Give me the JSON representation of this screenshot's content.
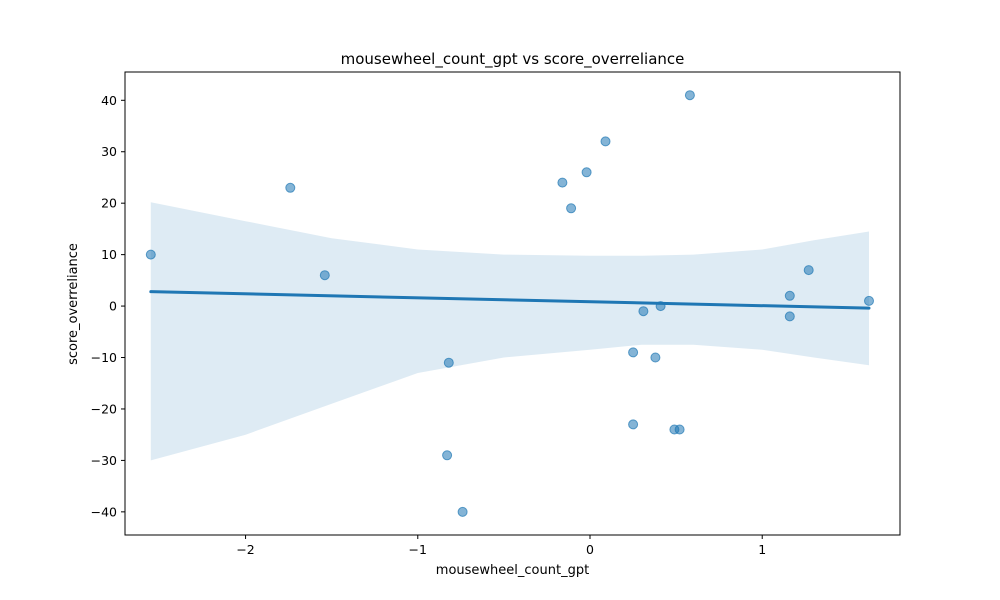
{
  "chart_data": {
    "type": "scatter",
    "title": "mousewheel_count_gpt vs score_overreliance",
    "xlabel": "mousewheel_count_gpt",
    "ylabel": "score_overreliance",
    "xlim": [
      -2.7,
      1.8
    ],
    "ylim": [
      -44.5,
      45.5
    ],
    "xticks": [
      -2,
      -1,
      0,
      1
    ],
    "xtick_labels": [
      "−2",
      "−1",
      "0",
      "1"
    ],
    "yticks": [
      40,
      30,
      20,
      10,
      0,
      -10,
      -20,
      -30,
      -40
    ],
    "ytick_labels": [
      "40",
      "30",
      "20",
      "10",
      "0",
      "−10",
      "−20",
      "−30",
      "−40"
    ],
    "grid": false,
    "point_color": "#1f77b4",
    "line_color": "#1f77b4",
    "band_color": "#1f77b4",
    "points": [
      {
        "x": -2.55,
        "y": 10
      },
      {
        "x": -1.74,
        "y": 23
      },
      {
        "x": -1.54,
        "y": 6
      },
      {
        "x": -0.82,
        "y": -11
      },
      {
        "x": -0.83,
        "y": -29
      },
      {
        "x": -0.74,
        "y": -40
      },
      {
        "x": -0.16,
        "y": 24
      },
      {
        "x": -0.11,
        "y": 19
      },
      {
        "x": -0.02,
        "y": 26
      },
      {
        "x": 0.09,
        "y": 32
      },
      {
        "x": 0.25,
        "y": -9
      },
      {
        "x": 0.25,
        "y": -23
      },
      {
        "x": 0.31,
        "y": -1
      },
      {
        "x": 0.38,
        "y": -10
      },
      {
        "x": 0.41,
        "y": 0
      },
      {
        "x": 0.49,
        "y": -24
      },
      {
        "x": 0.52,
        "y": -24
      },
      {
        "x": 0.58,
        "y": 41
      },
      {
        "x": 1.16,
        "y": 2
      },
      {
        "x": 1.16,
        "y": -2
      },
      {
        "x": 1.27,
        "y": 7
      },
      {
        "x": 1.62,
        "y": 1
      }
    ],
    "regression_line": {
      "x": [
        -2.55,
        1.62
      ],
      "y": [
        2.8,
        -0.4
      ]
    },
    "confidence_band": {
      "x": [
        -2.55,
        -2.0,
        -1.5,
        -1.0,
        -0.5,
        0.0,
        0.3,
        0.6,
        1.0,
        1.3,
        1.62
      ],
      "upper": [
        20.2,
        16.5,
        13.2,
        11.0,
        10.0,
        9.8,
        9.8,
        10.0,
        11.0,
        12.8,
        14.5
      ],
      "lower": [
        -30.0,
        -25.0,
        -19.0,
        -13.0,
        -10.0,
        -8.5,
        -7.5,
        -7.5,
        -8.5,
        -10.0,
        -11.5
      ]
    }
  }
}
